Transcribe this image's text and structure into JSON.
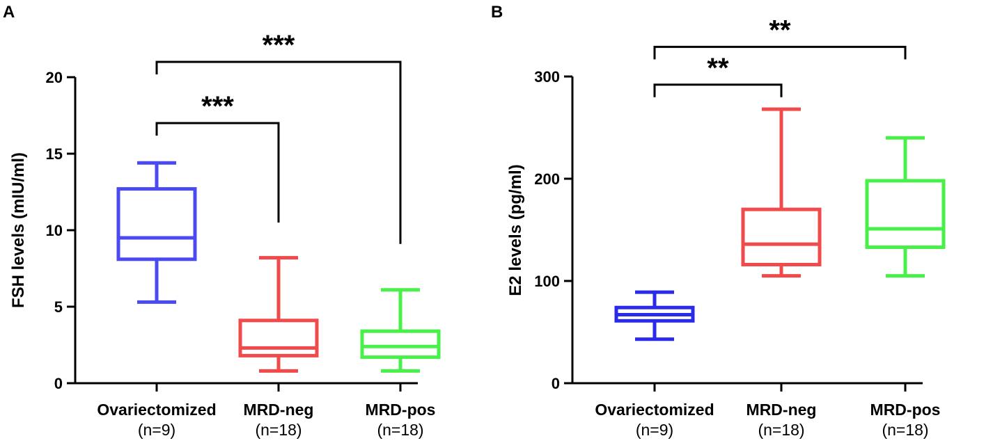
{
  "chart_data": [
    {
      "panel": "A",
      "type": "box",
      "title": "",
      "xlabel": "",
      "ylabel": "FSH levels (mIU/ml)",
      "ylim": [
        0,
        20
      ],
      "yticks": [
        0,
        5,
        10,
        15,
        20
      ],
      "groups": [
        {
          "name": "Ovariectomized",
          "n_label": "(n=9)",
          "color": "#4a4af0",
          "min": 5.3,
          "q1": 8.1,
          "median": 9.5,
          "q3": 12.7,
          "max": 14.4
        },
        {
          "name": "MRD-neg",
          "n_label": "(n=18)",
          "color": "#f04a4a",
          "min": 0.8,
          "q1": 1.8,
          "median": 2.3,
          "q3": 4.1,
          "max": 8.2
        },
        {
          "name": "MRD-pos",
          "n_label": "(n=18)",
          "color": "#4af04a",
          "min": 0.8,
          "q1": 1.7,
          "median": 2.4,
          "q3": 3.4,
          "max": 6.1
        }
      ],
      "comparisons": [
        {
          "from": 0,
          "to": 1,
          "label": "***",
          "level": 17.0,
          "drop_to": 10.5
        },
        {
          "from": 0,
          "to": 2,
          "label": "***",
          "level": 21.0,
          "drop_to": 9.1
        }
      ]
    },
    {
      "panel": "B",
      "type": "box",
      "title": "",
      "xlabel": "",
      "ylabel": "E2 levels (pg/ml)",
      "ylim": [
        0,
        300
      ],
      "yticks": [
        0,
        100,
        200,
        300
      ],
      "groups": [
        {
          "name": "Ovariectomized",
          "n_label": "(n=9)",
          "color": "#2a2ae8",
          "min": 43,
          "q1": 61,
          "median": 67,
          "q3": 74,
          "max": 89
        },
        {
          "name": "MRD-neg",
          "n_label": "(n=18)",
          "color": "#f04a4a",
          "min": 105,
          "q1": 116,
          "median": 136,
          "q3": 170,
          "max": 268
        },
        {
          "name": "MRD-pos",
          "n_label": "(n=18)",
          "color": "#4af04a",
          "min": 105,
          "q1": 133,
          "median": 151,
          "q3": 198,
          "max": 240
        }
      ],
      "comparisons": [
        {
          "from": 0,
          "to": 1,
          "label": "**",
          "level": 292,
          "drop_to": 292
        },
        {
          "from": 0,
          "to": 2,
          "label": "**",
          "level": 329,
          "drop_to": 329
        }
      ]
    }
  ]
}
